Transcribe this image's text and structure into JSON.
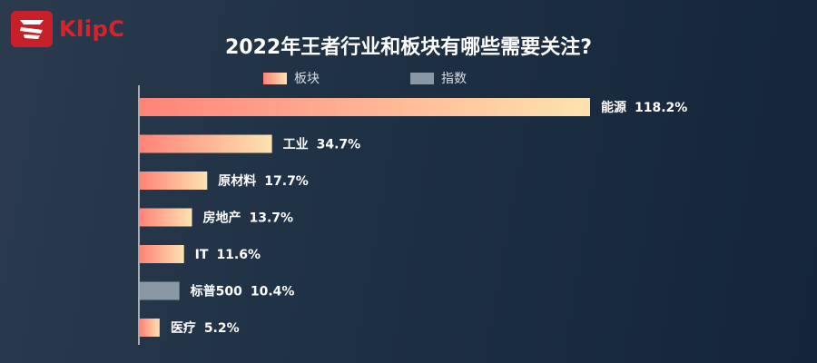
{
  "logo": {
    "text": "KlipC"
  },
  "chart_data": {
    "type": "bar",
    "orientation": "horizontal",
    "title": "2022年王者行业和板块有哪些需要关注?",
    "legend": [
      {
        "name": "板块",
        "color": "#ff8a7a"
      },
      {
        "name": "指数",
        "color": "#8a97a4"
      }
    ],
    "legend_placement": "top",
    "categories": [
      "能源",
      "工业",
      "原材料",
      "房地产",
      "IT",
      "标普500",
      "医疗"
    ],
    "values": [
      118.2,
      34.7,
      17.7,
      13.7,
      11.6,
      10.4,
      5.2
    ],
    "value_labels": [
      "118.2%",
      "34.7%",
      "17.7%",
      "13.7%",
      "11.6%",
      "10.4%",
      "5.2%"
    ],
    "series_of_category": [
      "板块",
      "板块",
      "板块",
      "板块",
      "板块",
      "指数",
      "板块"
    ],
    "unit": "%",
    "xlim": [
      0,
      118.2
    ],
    "grid": false
  },
  "colors": {
    "gradient_start": "#ff8378",
    "gradient_end": "#fde3b0",
    "index_bar": "#8a97a4",
    "axis": "#d0d6dc"
  }
}
